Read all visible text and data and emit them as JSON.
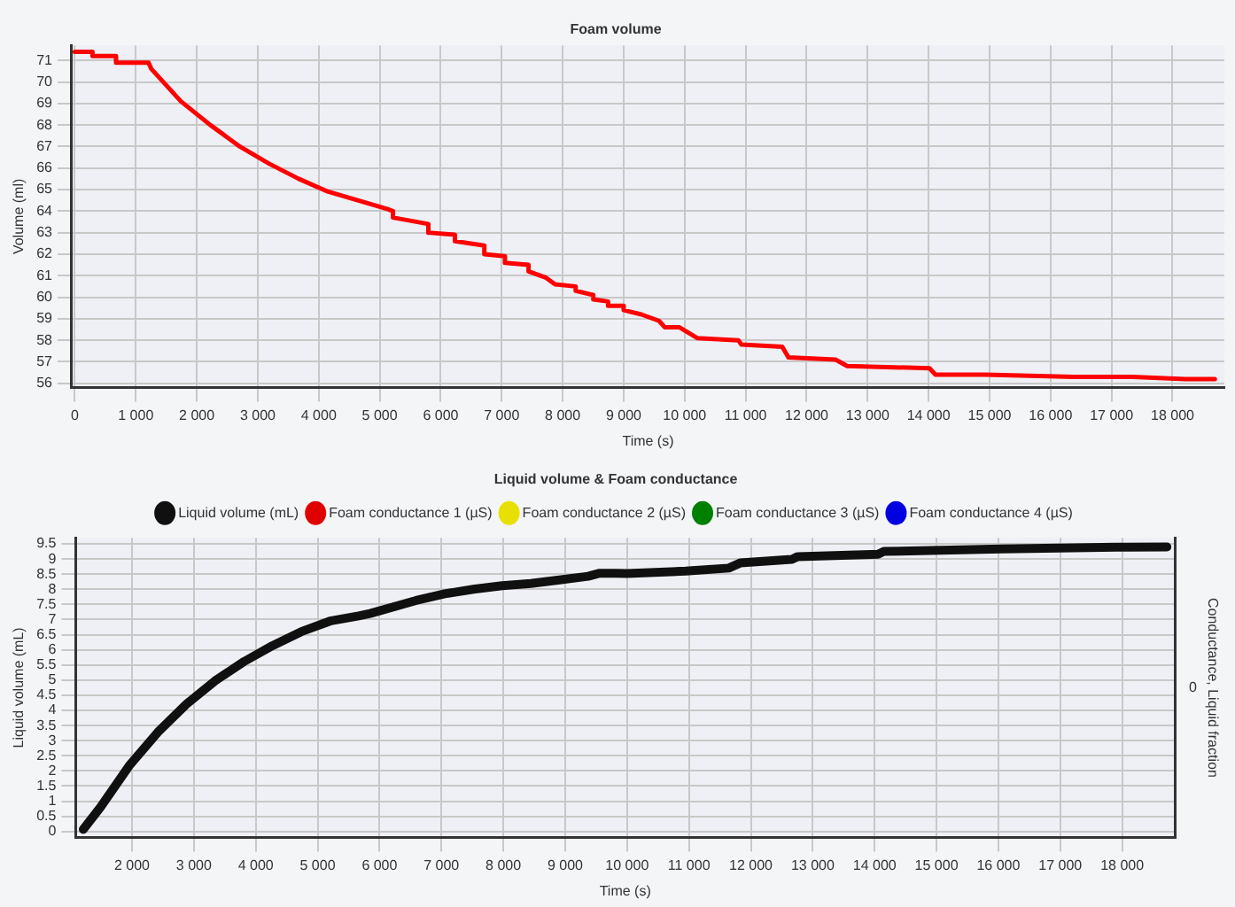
{
  "chart_data": [
    {
      "type": "line",
      "title": "Foam volume",
      "xlabel": "Time (s)",
      "ylabel": "Volume (ml)",
      "grid": true,
      "legend": false,
      "marker": "none",
      "line_style": "solid",
      "xlim": [
        -50,
        18850
      ],
      "ylim": [
        55.8,
        71.7
      ],
      "xticks": [
        0,
        {
          "value": 1000,
          "label": "1 000"
        },
        {
          "value": 2000,
          "label": "2 000"
        },
        {
          "value": 3000,
          "label": "3 000"
        },
        {
          "value": 4000,
          "label": "4 000"
        },
        {
          "value": 5000,
          "label": "5 000"
        },
        {
          "value": 6000,
          "label": "6 000"
        },
        {
          "value": 7000,
          "label": "7 000"
        },
        {
          "value": 8000,
          "label": "8 000"
        },
        {
          "value": 9000,
          "label": "9 000"
        },
        {
          "value": 10000,
          "label": "10 000"
        },
        {
          "value": 11000,
          "label": "11 000"
        },
        {
          "value": 12000,
          "label": "12 000"
        },
        {
          "value": 13000,
          "label": "13 000"
        },
        {
          "value": 14000,
          "label": "14 000"
        },
        {
          "value": 15000,
          "label": "15 000"
        },
        {
          "value": 16000,
          "label": "16 000"
        },
        {
          "value": 17000,
          "label": "17 000"
        },
        {
          "value": 18000,
          "label": "18 000"
        }
      ],
      "yticks": [
        56,
        57,
        58,
        59,
        60,
        61,
        62,
        63,
        64,
        65,
        66,
        67,
        68,
        69,
        70,
        71
      ],
      "x": [
        0,
        290,
        290,
        676,
        676,
        1208,
        1256,
        1739,
        2222,
        2705,
        3188,
        3671,
        4155,
        4638,
        5121,
        5217,
        5217,
        5797,
        5797,
        6232,
        6232,
        6715,
        6715,
        7053,
        7053,
        7440,
        7440,
        7730,
        7874,
        8213,
        8213,
        8502,
        8502,
        8744,
        8744,
        9000,
        9000,
        9290,
        9580,
        9675,
        9916,
        10206,
        10881,
        10930,
        11600,
        11702,
        12474,
        12665,
        14016,
        14112,
        14932,
        16380,
        17344,
        18212,
        18694
      ],
      "series": [
        {
          "color": "#ff0000",
          "values": [
            71.4,
            71.4,
            71.2,
            71.2,
            70.9,
            70.9,
            70.6,
            69.1,
            68.0,
            67.0,
            66.2,
            65.5,
            64.9,
            64.5,
            64.1,
            64.0,
            63.7,
            63.4,
            63.0,
            62.9,
            62.6,
            62.4,
            62.0,
            61.9,
            61.6,
            61.5,
            61.2,
            60.9,
            60.6,
            60.5,
            60.3,
            60.1,
            59.9,
            59.8,
            59.6,
            59.6,
            59.4,
            59.2,
            58.9,
            58.6,
            58.6,
            58.1,
            58.0,
            57.8,
            57.7,
            57.2,
            57.1,
            56.8,
            56.7,
            56.4,
            56.4,
            56.3,
            56.3,
            56.2,
            56.2
          ]
        }
      ]
    },
    {
      "type": "line",
      "title": "Liquid volume & Foam conductance",
      "xlabel": "Time (s)",
      "ylabel": "Liquid volume (mL)",
      "y2label": "Conductance, Liquid fraction",
      "annotations": [
        "0"
      ],
      "grid": true,
      "legend": "top",
      "marker": "none",
      "line_style": "solid",
      "xlim": [
        1090,
        18850
      ],
      "ylim": [
        -0.2,
        9.7
      ],
      "xticks": [
        {
          "value": 2000,
          "label": "2 000"
        },
        {
          "value": 3000,
          "label": "3 000"
        },
        {
          "value": 4000,
          "label": "4 000"
        },
        {
          "value": 5000,
          "label": "5 000"
        },
        {
          "value": 6000,
          "label": "6 000"
        },
        {
          "value": 7000,
          "label": "7 000"
        },
        {
          "value": 8000,
          "label": "8 000"
        },
        {
          "value": 9000,
          "label": "9 000"
        },
        {
          "value": 10000,
          "label": "10 000"
        },
        {
          "value": 11000,
          "label": "11 000"
        },
        {
          "value": 12000,
          "label": "12 000"
        },
        {
          "value": 13000,
          "label": "13 000"
        },
        {
          "value": 14000,
          "label": "14 000"
        },
        {
          "value": 15000,
          "label": "15 000"
        },
        {
          "value": 16000,
          "label": "16 000"
        },
        {
          "value": 17000,
          "label": "17 000"
        },
        {
          "value": 18000,
          "label": "18 000"
        }
      ],
      "yticks": [
        0,
        0.5,
        1,
        1.5,
        2,
        2.5,
        3,
        3.5,
        4,
        4.5,
        5,
        5.5,
        6,
        6.5,
        7,
        7.5,
        8,
        8.5,
        9,
        9.5
      ],
      "x": [
        1212,
        1490,
        1954,
        2417,
        2881,
        3344,
        3808,
        4271,
        4735,
        5199,
        5662,
        5848,
        6589,
        7053,
        7516,
        7980,
        8444,
        8907,
        9371,
        9556,
        9834,
        10000,
        10947,
        11643,
        11828,
        12664,
        12757,
        14056,
        14149,
        16051,
        17907,
        18724
      ],
      "series": [
        {
          "name": "Liquid volume (mL)",
          "color": "#101010",
          "values": [
            0.07,
            0.8,
            2.17,
            3.28,
            4.21,
            4.98,
            5.61,
            6.14,
            6.6,
            6.95,
            7.12,
            7.2,
            7.63,
            7.85,
            8.0,
            8.12,
            8.19,
            8.31,
            8.43,
            8.53,
            8.53,
            8.52,
            8.6,
            8.7,
            8.87,
            8.99,
            9.08,
            9.16,
            9.25,
            9.33,
            9.39,
            9.4
          ]
        },
        {
          "name": "Foam conductance 1 (µS)",
          "color": "#e00000",
          "values": [
            null,
            null,
            null,
            null,
            null,
            null,
            null,
            null,
            null,
            null,
            null,
            null,
            null,
            null,
            null,
            null,
            null,
            null,
            null,
            null,
            null,
            null,
            null,
            null,
            null,
            null,
            null,
            null,
            null,
            null,
            null,
            null
          ]
        },
        {
          "name": "Foam conductance 2 (µS)",
          "color": "#e8e000",
          "values": [
            null,
            null,
            null,
            null,
            null,
            null,
            null,
            null,
            null,
            null,
            null,
            null,
            null,
            null,
            null,
            null,
            null,
            null,
            null,
            null,
            null,
            null,
            null,
            null,
            null,
            null,
            null,
            null,
            null,
            null,
            null,
            null
          ]
        },
        {
          "name": "Foam conductance 3 (µS)",
          "color": "#008000",
          "values": [
            null,
            null,
            null,
            null,
            null,
            null,
            null,
            null,
            null,
            null,
            null,
            null,
            null,
            null,
            null,
            null,
            null,
            null,
            null,
            null,
            null,
            null,
            null,
            null,
            null,
            null,
            null,
            null,
            null,
            null,
            null,
            null
          ]
        },
        {
          "name": "Foam conductance 4 (µS)",
          "color": "#0000e0",
          "values": [
            null,
            null,
            null,
            null,
            null,
            null,
            null,
            null,
            null,
            null,
            null,
            null,
            null,
            null,
            null,
            null,
            null,
            null,
            null,
            null,
            null,
            null,
            null,
            null,
            null,
            null,
            null,
            null,
            null,
            null,
            null,
            null
          ]
        }
      ]
    }
  ]
}
